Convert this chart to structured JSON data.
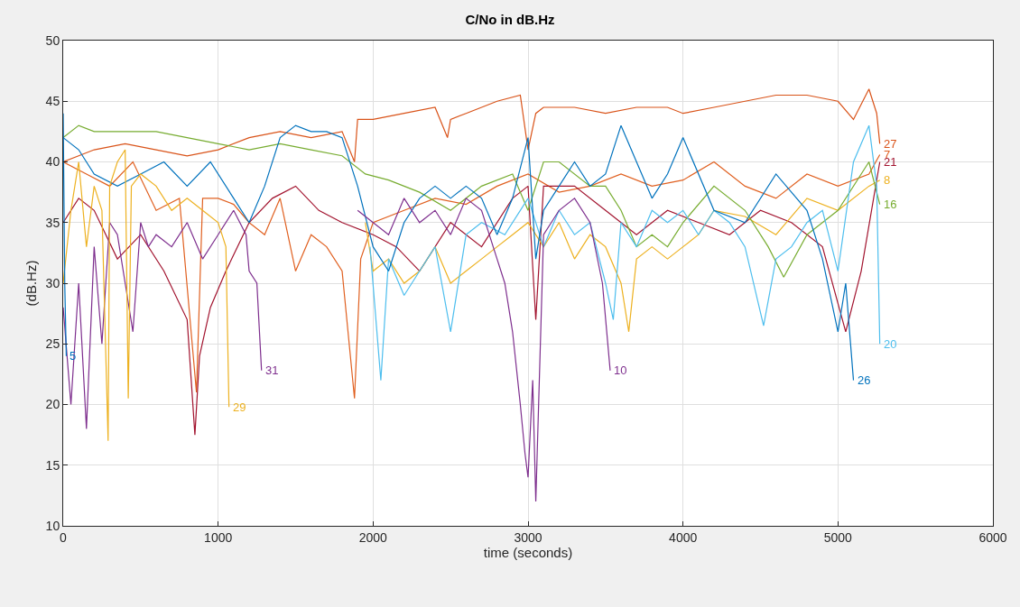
{
  "chart_data": {
    "type": "line",
    "title": "C/No in dB.Hz",
    "xlabel": "time (seconds)",
    "ylabel": "(dB.Hz)",
    "xlim": [
      0,
      6000
    ],
    "xticks": [
      0,
      1000,
      2000,
      3000,
      4000,
      5000,
      6000
    ],
    "ylim": [
      10,
      50
    ],
    "yticks": [
      10,
      15,
      20,
      25,
      30,
      35,
      40,
      45,
      50
    ],
    "grid": true,
    "legend": false,
    "line_style": "solid",
    "marker": "none",
    "series": [
      {
        "name": "27",
        "color": "#d95319",
        "x": [
          0,
          100,
          200,
          400,
          600,
          800,
          1000,
          1200,
          1400,
          1600,
          1800,
          1880,
          1900,
          2000,
          2200,
          2400,
          2480,
          2500,
          2600,
          2800,
          2950,
          3000,
          3050,
          3100,
          3300,
          3500,
          3700,
          3900,
          4000,
          4200,
          4400,
          4600,
          4800,
          5000,
          5100,
          5200,
          5250,
          5270
        ],
        "values": [
          40,
          40.5,
          41,
          41.5,
          41,
          40.5,
          41,
          42,
          42.5,
          42,
          42.5,
          40,
          43.5,
          43.5,
          44,
          44.5,
          42,
          43.5,
          44,
          45,
          45.5,
          41,
          44,
          44.5,
          44.5,
          44,
          44.5,
          44.5,
          44,
          44.5,
          45,
          45.5,
          45.5,
          45,
          43.5,
          46,
          44,
          41.5
        ]
      },
      {
        "name": "7",
        "color": "#e06020",
        "x": [
          0,
          150,
          300,
          450,
          600,
          750,
          860,
          900,
          1000,
          1100,
          1200,
          1300,
          1400,
          1500,
          1600,
          1700,
          1800,
          1880,
          1920,
          2000,
          2200,
          2400,
          2600,
          2800,
          3000,
          3200,
          3400,
          3600,
          3800,
          4000,
          4200,
          4400,
          4600,
          4800,
          5000,
          5200,
          5270
        ],
        "values": [
          40,
          39,
          38,
          40,
          36,
          37,
          21,
          37,
          37,
          36.5,
          35,
          34,
          37,
          31,
          34,
          33,
          31,
          20.5,
          32,
          35,
          36,
          37,
          36.5,
          38,
          39,
          37.5,
          38,
          39,
          38,
          38.5,
          40,
          38,
          37,
          39,
          38,
          39,
          40.6
        ]
      },
      {
        "name": "21",
        "color": "#a2142f",
        "x": [
          0,
          100,
          200,
          350,
          500,
          650,
          800,
          850,
          880,
          950,
          1050,
          1200,
          1350,
          1500,
          1650,
          1800,
          2000,
          2150,
          2300,
          2500,
          2700,
          2900,
          3000,
          3050,
          3100,
          3300,
          3500,
          3700,
          3900,
          4100,
          4300,
          4500,
          4700,
          4900,
          5050,
          5150,
          5270
        ],
        "values": [
          35,
          37,
          36,
          32,
          34,
          31,
          27,
          17.5,
          24,
          28,
          31,
          35,
          37,
          38,
          36,
          35,
          34,
          33,
          31,
          35,
          33,
          37,
          38,
          27,
          38,
          38,
          36,
          34,
          36,
          35,
          34,
          36,
          35,
          33,
          26,
          31,
          40
        ]
      },
      {
        "name": "8",
        "color": "#edb120",
        "x": [
          1950,
          2000,
          2100,
          2200,
          2300,
          2400,
          2500,
          2600,
          2700,
          2800,
          2900,
          3000,
          3100,
          3200,
          3300,
          3400,
          3500,
          3600,
          3650,
          3700,
          3800,
          3900,
          4000,
          4100,
          4200,
          4400,
          4600,
          4800,
          5000,
          5200,
          5270
        ],
        "values": [
          35,
          31,
          32,
          30,
          31,
          33,
          30,
          31,
          32,
          33,
          34,
          35,
          33,
          35,
          32,
          34,
          33,
          30,
          26,
          32,
          33,
          32,
          33,
          34,
          36,
          35.5,
          34,
          37,
          36,
          38,
          38.5
        ]
      },
      {
        "name": "16",
        "color": "#77ac30",
        "x": [
          0,
          100,
          200,
          400,
          600,
          800,
          1000,
          1200,
          1400,
          1600,
          1800,
          1950,
          2100,
          2300,
          2500,
          2700,
          2900,
          3000,
          3100,
          3200,
          3400,
          3500,
          3600,
          3700,
          3800,
          3900,
          4000,
          4200,
          4400,
          4550,
          4650,
          4800,
          5000,
          5200,
          5270
        ],
        "values": [
          42,
          43,
          42.5,
          42.5,
          42.5,
          42,
          41.5,
          41,
          41.5,
          41,
          40.5,
          39,
          38.5,
          37.5,
          36,
          38,
          39,
          36,
          40,
          40,
          38,
          38,
          36,
          33,
          34,
          33,
          35,
          38,
          36,
          33,
          30.5,
          34,
          36,
          40,
          36.5
        ]
      },
      {
        "name": "20",
        "color": "#4dbeee",
        "x": [
          1980,
          2050,
          2100,
          2200,
          2300,
          2400,
          2500,
          2600,
          2700,
          2850,
          3000,
          3100,
          3200,
          3300,
          3400,
          3500,
          3550,
          3600,
          3700,
          3800,
          3900,
          4000,
          4100,
          4200,
          4300,
          4400,
          4520,
          4600,
          4700,
          4800,
          4900,
          5000,
          5100,
          5200,
          5250,
          5270
        ],
        "values": [
          33,
          22,
          32,
          29,
          31,
          33,
          26,
          34,
          35,
          34,
          37,
          33,
          36,
          34,
          35,
          30,
          27,
          35,
          33,
          36,
          35,
          36,
          34,
          36,
          35,
          33,
          26.5,
          32,
          33,
          35,
          36,
          31,
          40,
          43,
          38,
          25
        ]
      },
      {
        "name": "26",
        "color": "#0072bd",
        "x": [
          0,
          100,
          200,
          350,
          500,
          650,
          800,
          950,
          1100,
          1200,
          1300,
          1400,
          1500,
          1600,
          1700,
          1800,
          1900,
          2000,
          2100,
          2200,
          2300,
          2400,
          2500,
          2600,
          2700,
          2800,
          2900,
          3000,
          3050,
          3100,
          3200,
          3300,
          3400,
          3500,
          3600,
          3700,
          3800,
          3900,
          4000,
          4200,
          4400,
          4600,
          4800,
          4900,
          5000,
          5050,
          5100
        ],
        "values": [
          42,
          41,
          39,
          38,
          39,
          40,
          38,
          40,
          37,
          35,
          38,
          42,
          43,
          42.5,
          42.5,
          42,
          38,
          33,
          31,
          35,
          37,
          38,
          37,
          38,
          37,
          34,
          37,
          42,
          32,
          36,
          38,
          40,
          38,
          39,
          43,
          40,
          37,
          39,
          42,
          36,
          35,
          39,
          36,
          32,
          26,
          30,
          22
        ]
      },
      {
        "name": "10",
        "color": "#7e2f8e",
        "x": [
          1900,
          2000,
          2100,
          2200,
          2300,
          2400,
          2500,
          2600,
          2700,
          2800,
          2850,
          2900,
          2950,
          2980,
          3000,
          3030,
          3050,
          3100,
          3200,
          3300,
          3400,
          3480,
          3530
        ],
        "values": [
          36,
          35,
          34,
          37,
          35,
          36,
          34,
          37,
          36,
          32,
          30,
          26,
          20,
          16,
          14,
          22,
          12,
          34,
          36,
          37,
          35,
          30,
          22.8
        ]
      },
      {
        "name": "31",
        "color": "#7e2f8e",
        "x": [
          0,
          50,
          100,
          150,
          200,
          250,
          300,
          350,
          400,
          450,
          500,
          550,
          600,
          700,
          800,
          900,
          1000,
          1100,
          1180,
          1200,
          1250,
          1280
        ],
        "values": [
          28,
          20,
          30,
          18,
          33,
          25,
          35,
          34,
          30,
          26,
          35,
          33,
          34,
          33,
          35,
          32,
          34,
          36,
          34,
          31,
          30,
          22.8
        ]
      },
      {
        "name": "29",
        "color": "#edb120",
        "x": [
          0,
          50,
          100,
          150,
          200,
          250,
          290,
          300,
          350,
          400,
          420,
          440,
          500,
          600,
          700,
          800,
          900,
          1000,
          1050,
          1070
        ],
        "values": [
          30,
          36,
          40,
          33,
          38,
          36,
          17,
          38,
          40,
          41,
          20.5,
          38,
          39,
          38,
          36,
          37,
          36,
          35,
          33,
          19.8
        ]
      },
      {
        "name": "5",
        "color": "#0072bd",
        "x": [
          0,
          10,
          20
        ],
        "values": [
          44,
          30,
          24
        ]
      }
    ]
  }
}
